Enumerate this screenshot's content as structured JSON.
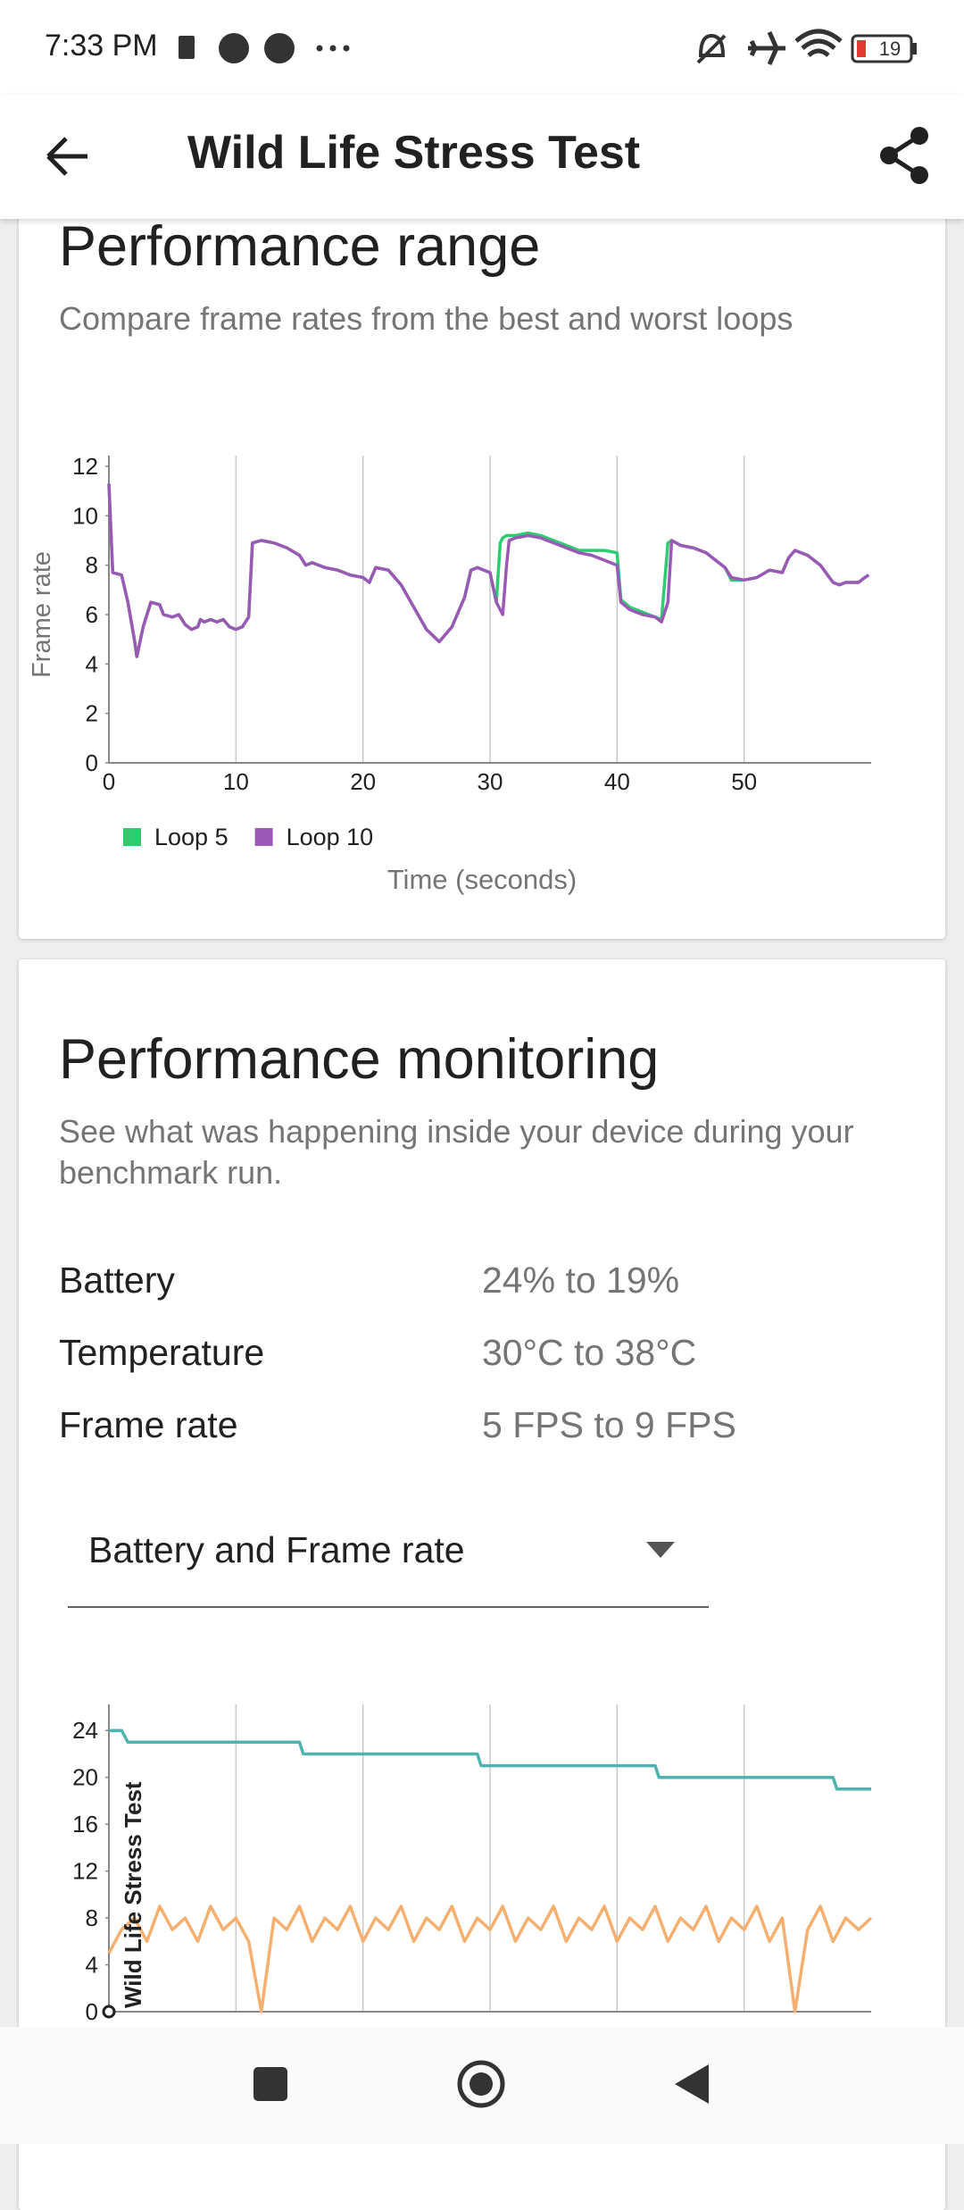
{
  "status_bar": {
    "time": "7:33 PM",
    "battery": "19"
  },
  "app_bar": {
    "title": "Wild Life Stress Test"
  },
  "performance_range": {
    "heading": "Performance range",
    "subtitle": "Compare frame rates from the best and worst loops",
    "chart": {
      "type": "line",
      "ylabel": "Frame rate",
      "xlabel": "Time (seconds)",
      "xlim": [
        0,
        60
      ],
      "xticks": [
        0,
        10,
        20,
        30,
        40,
        50
      ],
      "ylim": [
        0,
        12
      ],
      "yticks": [
        0,
        2,
        4,
        6,
        8,
        10,
        12
      ],
      "grid": "x",
      "legend": "bottom left",
      "x": [
        0,
        0.3,
        1,
        1.5,
        2,
        2.2,
        2.7,
        3.3,
        4,
        4.3,
        5,
        5.5,
        6,
        6.5,
        7,
        7.2,
        7.5,
        8,
        8.5,
        9,
        9.5,
        10,
        10.5,
        11,
        11.3,
        12,
        13,
        14,
        15,
        15.5,
        16,
        17,
        18,
        19,
        20,
        20.5,
        21,
        22,
        23,
        24,
        25,
        26,
        27,
        28,
        28.5,
        29,
        30,
        30.5,
        30.8,
        31,
        31.3,
        31.5,
        32,
        33,
        34,
        35,
        36,
        37,
        38,
        39,
        40,
        40.3,
        41,
        42,
        43,
        43.5,
        44,
        44.3,
        45,
        46,
        47,
        48,
        48.5,
        49,
        50,
        51,
        52,
        53,
        53.5,
        54,
        55,
        56,
        57,
        57.5,
        58,
        59,
        59.5,
        59.8
      ],
      "series": [
        {
          "name": "Loop 5",
          "color": "#2ecc71",
          "values": [
            11.3,
            7.7,
            7.6,
            6.5,
            5,
            4.3,
            5.5,
            6.5,
            6.4,
            6,
            5.9,
            6,
            5.6,
            5.4,
            5.5,
            5.8,
            5.7,
            5.8,
            5.7,
            5.8,
            5.5,
            5.4,
            5.5,
            5.9,
            8.9,
            9.0,
            8.9,
            8.7,
            8.4,
            8.0,
            8.1,
            7.9,
            7.8,
            7.6,
            7.5,
            7.3,
            7.9,
            7.8,
            7.2,
            6.3,
            5.4,
            4.9,
            5.5,
            6.7,
            7.8,
            7.9,
            7.7,
            6.5,
            8.9,
            9.1,
            9.2,
            9.2,
            9.2,
            9.3,
            9.2,
            9.0,
            8.8,
            8.6,
            8.6,
            8.6,
            8.5,
            6.6,
            6.3,
            6.1,
            5.9,
            5.8,
            8.9,
            9.0,
            8.8,
            8.7,
            8.5,
            8.1,
            7.9,
            7.4,
            7.4,
            7.5,
            7.8,
            7.7,
            8.3,
            8.6,
            8.4,
            8.0,
            7.3,
            7.2,
            7.3,
            7.3,
            7.5,
            7.6
          ]
        },
        {
          "name": "Loop 10",
          "color": "#9b59b6",
          "values": [
            11.3,
            7.7,
            7.6,
            6.5,
            5,
            4.3,
            5.5,
            6.5,
            6.4,
            6,
            5.9,
            6,
            5.6,
            5.4,
            5.5,
            5.8,
            5.7,
            5.8,
            5.7,
            5.8,
            5.5,
            5.4,
            5.5,
            5.9,
            8.9,
            9.0,
            8.9,
            8.7,
            8.4,
            8.0,
            8.1,
            7.9,
            7.8,
            7.6,
            7.5,
            7.3,
            7.9,
            7.8,
            7.2,
            6.3,
            5.4,
            4.9,
            5.5,
            6.7,
            7.8,
            7.9,
            7.7,
            6.5,
            6.2,
            6.0,
            8.0,
            9.0,
            9.1,
            9.2,
            9.1,
            8.9,
            8.7,
            8.5,
            8.4,
            8.2,
            8.0,
            6.5,
            6.2,
            6.0,
            5.9,
            5.7,
            6.5,
            9.0,
            8.8,
            8.7,
            8.5,
            8.1,
            7.9,
            7.5,
            7.4,
            7.5,
            7.8,
            7.7,
            8.3,
            8.6,
            8.4,
            8.0,
            7.3,
            7.2,
            7.3,
            7.3,
            7.5,
            7.6
          ]
        }
      ]
    }
  },
  "performance_monitoring": {
    "heading": "Performance monitoring",
    "subtitle": "See what was happening inside your device during your benchmark run.",
    "stats": [
      {
        "label": "Battery",
        "value": "24% to 19%"
      },
      {
        "label": "Temperature",
        "value": "30°C to 38°C"
      },
      {
        "label": "Frame rate",
        "value": "5 FPS to 9 FPS"
      }
    ],
    "dropdown": {
      "selected": "Battery and Frame rate"
    },
    "chart": {
      "type": "line",
      "annotation": "Wild Life Stress Test",
      "xlim": [
        0,
        60
      ],
      "xticks": [
        0,
        10,
        20,
        30,
        40,
        50
      ],
      "ylim": [
        0,
        26
      ],
      "yticks": [
        0,
        4,
        8,
        12,
        16,
        20,
        24
      ],
      "grid": "x",
      "series": [
        {
          "color": "#4fb3b0",
          "x": [
            0,
            1,
            1.5,
            15,
            15.3,
            29,
            29.3,
            43,
            43.3,
            57,
            57.3,
            60
          ],
          "values": [
            24,
            24,
            23,
            23,
            22,
            22,
            21,
            21,
            20,
            20,
            19,
            19
          ]
        },
        {
          "color": "#f5b070",
          "x": [
            0,
            1,
            2,
            3,
            4,
            5,
            6,
            7,
            8,
            9,
            10,
            11,
            12,
            13,
            14,
            15,
            16,
            17,
            18,
            19,
            20,
            21,
            22,
            23,
            24,
            25,
            26,
            27,
            28,
            29,
            30,
            31,
            32,
            33,
            34,
            35,
            36,
            37,
            38,
            39,
            40,
            41,
            42,
            43,
            44,
            45,
            46,
            47,
            48,
            49,
            50,
            51,
            52,
            53,
            54,
            55,
            56,
            57,
            58,
            59,
            60
          ],
          "values": [
            5,
            7,
            8,
            6,
            9,
            7,
            8,
            6,
            9,
            7,
            8,
            6,
            0,
            8,
            7,
            9,
            6,
            8,
            7,
            9,
            6,
            8,
            7,
            9,
            6,
            8,
            7,
            9,
            6,
            8,
            7,
            9,
            6,
            8,
            7,
            9,
            6,
            8,
            7,
            9,
            6,
            8,
            7,
            9,
            6,
            8,
            7,
            9,
            6,
            8,
            7,
            9,
            6,
            8,
            0,
            7,
            9,
            6,
            8,
            7,
            8
          ]
        }
      ]
    }
  }
}
